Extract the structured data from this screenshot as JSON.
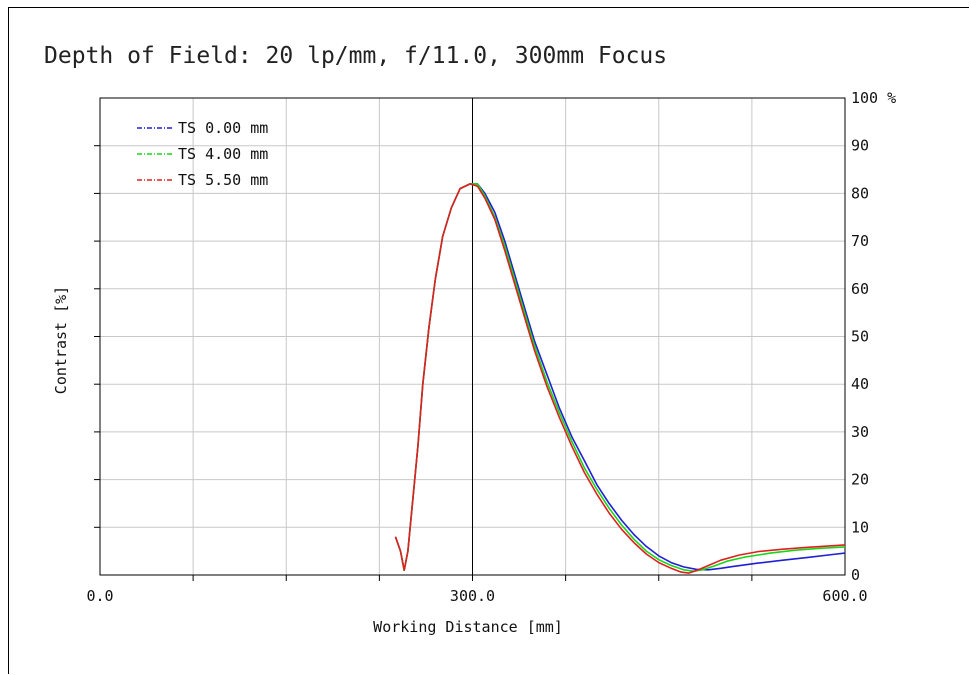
{
  "chart_data": {
    "type": "line",
    "title": "Depth of Field: 20 lp/mm, f/11.0, 300mm Focus",
    "xlabel": "Working Distance [mm]",
    "ylabel": "Contrast [%]",
    "xlim": [
      0,
      600
    ],
    "ylim": [
      0,
      100
    ],
    "x_ticks": [
      "0.0",
      "300.0",
      "600.0"
    ],
    "y_ticks": [
      "0",
      "10",
      "20",
      "30",
      "40",
      "50",
      "60",
      "70",
      "80",
      "90",
      "100 %"
    ],
    "focus_line_x": 300,
    "grid": true,
    "legend_position": "top-left",
    "series": [
      {
        "name": "TS 0.00 mm",
        "color": "#1f1fd6",
        "points": [
          [
            238,
            8
          ],
          [
            242,
            5
          ],
          [
            245,
            1
          ],
          [
            248,
            5
          ],
          [
            252,
            16
          ],
          [
            256,
            27
          ],
          [
            260,
            40
          ],
          [
            265,
            52
          ],
          [
            270,
            62
          ],
          [
            276,
            71
          ],
          [
            283,
            77
          ],
          [
            290,
            81
          ],
          [
            298,
            82
          ],
          [
            304,
            82
          ],
          [
            310,
            80
          ],
          [
            318,
            76
          ],
          [
            326,
            70
          ],
          [
            334,
            63
          ],
          [
            342,
            56
          ],
          [
            350,
            49
          ],
          [
            360,
            42
          ],
          [
            370,
            35
          ],
          [
            380,
            29
          ],
          [
            390,
            24
          ],
          [
            400,
            19
          ],
          [
            410,
            15
          ],
          [
            420,
            11.5
          ],
          [
            430,
            8.5
          ],
          [
            440,
            6
          ],
          [
            450,
            4
          ],
          [
            460,
            2.6
          ],
          [
            470,
            1.7
          ],
          [
            480,
            1.2
          ],
          [
            490,
            1.1
          ],
          [
            500,
            1.4
          ],
          [
            510,
            1.8
          ],
          [
            530,
            2.5
          ],
          [
            550,
            3.1
          ],
          [
            570,
            3.7
          ],
          [
            590,
            4.3
          ],
          [
            600,
            4.6
          ]
        ]
      },
      {
        "name": "TS 4.00 mm",
        "color": "#19d619",
        "points": [
          [
            238,
            8
          ],
          [
            242,
            5
          ],
          [
            245,
            1
          ],
          [
            248,
            5
          ],
          [
            252,
            16
          ],
          [
            256,
            27
          ],
          [
            260,
            40
          ],
          [
            265,
            52
          ],
          [
            270,
            62
          ],
          [
            276,
            71
          ],
          [
            283,
            77
          ],
          [
            290,
            81
          ],
          [
            298,
            82
          ],
          [
            304,
            82
          ],
          [
            310,
            79.5
          ],
          [
            318,
            75
          ],
          [
            326,
            69
          ],
          [
            334,
            62
          ],
          [
            342,
            55
          ],
          [
            350,
            48
          ],
          [
            360,
            40.5
          ],
          [
            370,
            34
          ],
          [
            380,
            28
          ],
          [
            390,
            22.5
          ],
          [
            400,
            18
          ],
          [
            410,
            14
          ],
          [
            420,
            10.5
          ],
          [
            430,
            7.5
          ],
          [
            440,
            5
          ],
          [
            450,
            3.2
          ],
          [
            460,
            2
          ],
          [
            470,
            1.1
          ],
          [
            478,
            0.8
          ],
          [
            485,
            1.1
          ],
          [
            495,
            1.9
          ],
          [
            505,
            2.9
          ],
          [
            520,
            3.8
          ],
          [
            540,
            4.6
          ],
          [
            560,
            5.2
          ],
          [
            580,
            5.6
          ],
          [
            600,
            5.9
          ]
        ]
      },
      {
        "name": "TS 5.50 mm",
        "color": "#e01f1f",
        "points": [
          [
            238,
            8
          ],
          [
            242,
            5
          ],
          [
            245,
            1
          ],
          [
            248,
            5
          ],
          [
            252,
            16
          ],
          [
            256,
            27
          ],
          [
            260,
            40
          ],
          [
            265,
            52
          ],
          [
            270,
            62
          ],
          [
            276,
            71
          ],
          [
            283,
            77
          ],
          [
            290,
            81
          ],
          [
            298,
            82
          ],
          [
            304,
            81.5
          ],
          [
            310,
            79
          ],
          [
            318,
            74.5
          ],
          [
            326,
            68
          ],
          [
            334,
            61
          ],
          [
            342,
            54
          ],
          [
            350,
            47
          ],
          [
            360,
            39.5
          ],
          [
            370,
            33
          ],
          [
            380,
            27
          ],
          [
            390,
            21.5
          ],
          [
            400,
            17
          ],
          [
            410,
            13
          ],
          [
            420,
            9.6
          ],
          [
            430,
            6.8
          ],
          [
            440,
            4.4
          ],
          [
            450,
            2.6
          ],
          [
            460,
            1.4
          ],
          [
            468,
            0.6
          ],
          [
            474,
            0.4
          ],
          [
            480,
            0.9
          ],
          [
            490,
            2
          ],
          [
            500,
            3.1
          ],
          [
            515,
            4.2
          ],
          [
            530,
            4.9
          ],
          [
            550,
            5.4
          ],
          [
            570,
            5.8
          ],
          [
            600,
            6.3
          ]
        ]
      }
    ]
  }
}
